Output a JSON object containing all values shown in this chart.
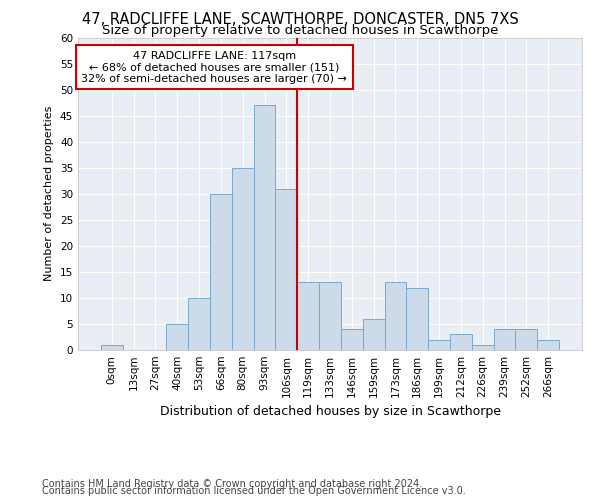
{
  "title1": "47, RADCLIFFE LANE, SCAWTHORPE, DONCASTER, DN5 7XS",
  "title2": "Size of property relative to detached houses in Scawthorpe",
  "xlabel": "Distribution of detached houses by size in Scawthorpe",
  "ylabel": "Number of detached properties",
  "bar_values": [
    1,
    0,
    0,
    5,
    10,
    30,
    35,
    47,
    31,
    13,
    13,
    4,
    6,
    13,
    12,
    2,
    3,
    1,
    4,
    4,
    2
  ],
  "bar_labels": [
    "0sqm",
    "13sqm",
    "27sqm",
    "40sqm",
    "53sqm",
    "66sqm",
    "80sqm",
    "93sqm",
    "106sqm",
    "119sqm",
    "133sqm",
    "146sqm",
    "159sqm",
    "173sqm",
    "186sqm",
    "199sqm",
    "212sqm",
    "226sqm",
    "239sqm",
    "252sqm",
    "266sqm"
  ],
  "bar_color": "#ccdaea",
  "bar_edge_color": "#7aaac8",
  "property_line_x": 8.5,
  "annotation_text": "47 RADCLIFFE LANE: 117sqm\n← 68% of detached houses are smaller (151)\n32% of semi-detached houses are larger (70) →",
  "annotation_box_facecolor": "#ffffff",
  "annotation_box_edgecolor": "#cc0000",
  "vline_color": "#cc0000",
  "ylim": [
    0,
    60
  ],
  "yticks": [
    0,
    5,
    10,
    15,
    20,
    25,
    30,
    35,
    40,
    45,
    50,
    55,
    60
  ],
  "background_color": "#e8eef4",
  "grid_color": "#ffffff",
  "footer1": "Contains HM Land Registry data © Crown copyright and database right 2024.",
  "footer2": "Contains public sector information licensed under the Open Government Licence v3.0.",
  "title1_fontsize": 10.5,
  "title2_fontsize": 9.5,
  "xlabel_fontsize": 9,
  "ylabel_fontsize": 8,
  "tick_fontsize": 7.5,
  "footer_fontsize": 7,
  "annotation_fontsize": 8
}
